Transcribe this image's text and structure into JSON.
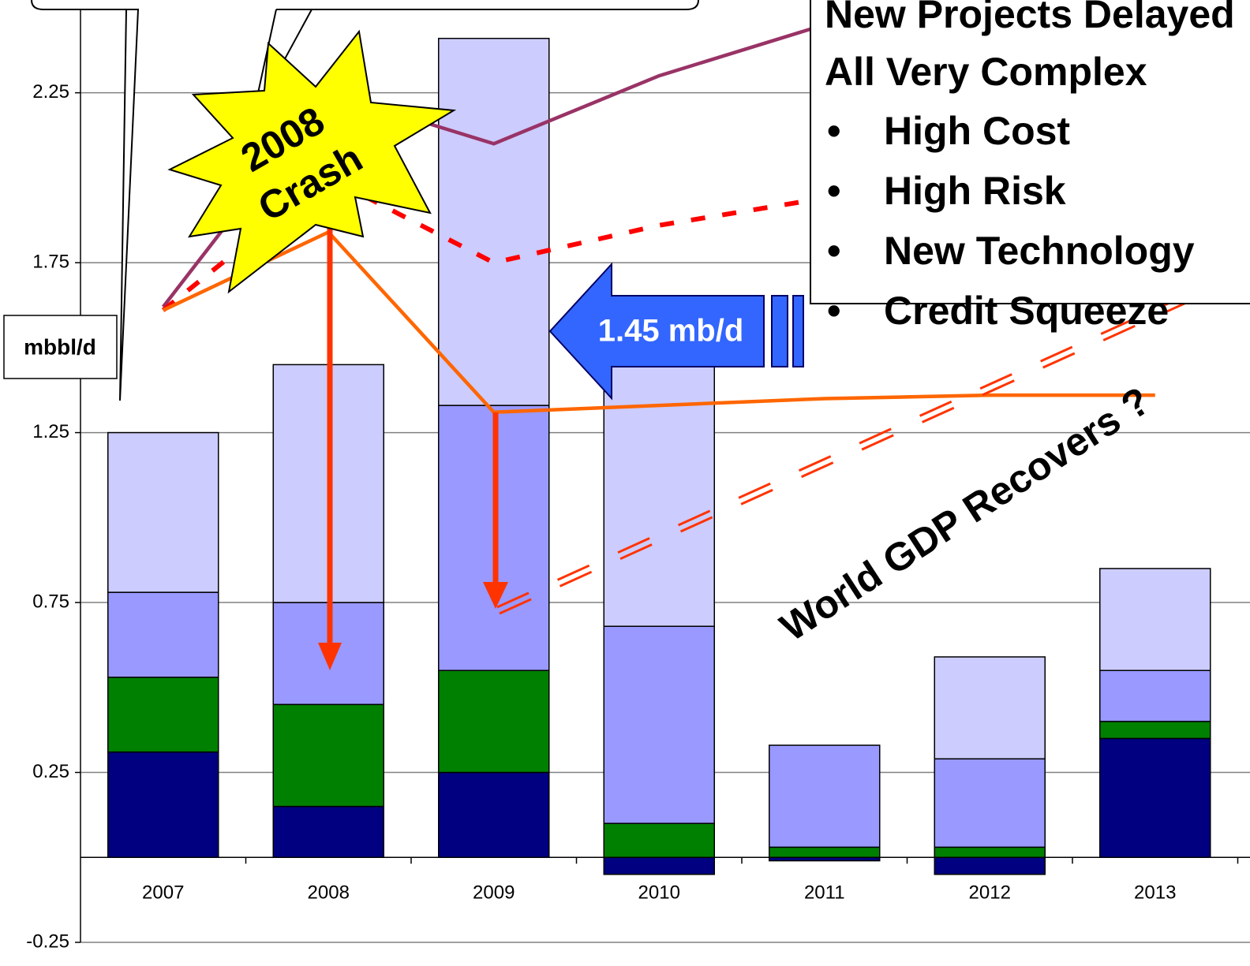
{
  "chart_data": {
    "type": "bar",
    "categories": [
      "2007",
      "2008",
      "2009",
      "2010",
      "2011",
      "2012",
      "2013"
    ],
    "series": [
      {
        "type": "bar",
        "color": "#000080",
        "values": [
          0.31,
          0.15,
          0.25,
          -0.05,
          -0.01,
          -0.05,
          0.35
        ]
      },
      {
        "type": "bar",
        "color": "#008000",
        "values": [
          0.22,
          0.3,
          0.3,
          0.1,
          0.03,
          0.03,
          0.05
        ]
      },
      {
        "type": "bar",
        "color": "#9999ff",
        "values": [
          0.25,
          0.3,
          0.78,
          0.58,
          0.3,
          0.26,
          0.15
        ]
      },
      {
        "type": "bar",
        "color": "#ccccff",
        "values": [
          0.47,
          0.7,
          1.08,
          0.78,
          0,
          0.3,
          0.3
        ]
      },
      {
        "type": "line",
        "color": "#993366",
        "style": "solid",
        "values": [
          1.62,
          2.25,
          2.1,
          2.3,
          2.45,
          null,
          null
        ]
      },
      {
        "type": "line",
        "color": "#ff0000",
        "style": "dashed",
        "values": [
          1.61,
          2.0,
          1.75,
          1.86,
          1.94,
          null,
          null
        ]
      },
      {
        "type": "line",
        "color": "#ff6600",
        "style": "solid",
        "values": [
          1.61,
          1.84,
          1.31,
          1.33,
          1.35,
          1.36,
          1.36
        ]
      }
    ],
    "ylim": [
      -0.25,
      2.523
    ],
    "yticks": [
      -0.25,
      0.25,
      0.75,
      1.25,
      1.75,
      2.25
    ],
    "grid": true,
    "y_label": "mbbl/d",
    "annotations": {
      "crash": [
        "2008",
        "Crash"
      ],
      "arrow": "1.45 mb/d",
      "recovery": "World GDP Recovers ?"
    },
    "note_box": {
      "lines": [
        "New Projects Delayed",
        "All Very Complex"
      ],
      "bullet": "•",
      "items": [
        "High Cost",
        "High Risk",
        "New Technology",
        "Credit Squeeze"
      ]
    }
  }
}
